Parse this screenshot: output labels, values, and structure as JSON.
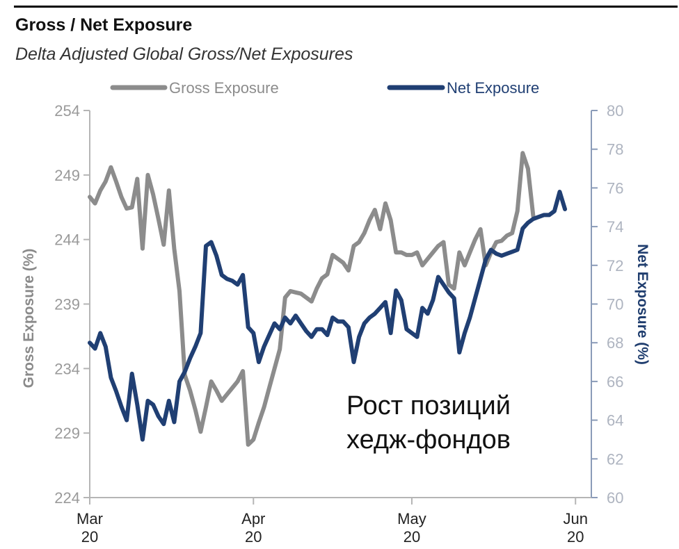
{
  "chart_data": {
    "type": "line",
    "title": "Gross / Net Exposure",
    "subtitle": "Delta Adjusted Global Gross/Net Exposures",
    "y_left_label": "Gross Exposure (%)",
    "y_right_label": "Net Exposure (%)",
    "y_left_range": [
      224,
      254
    ],
    "y_right_range": [
      60,
      80
    ],
    "y_left_ticks": [
      "224",
      "229",
      "234",
      "239",
      "244",
      "249",
      "254"
    ],
    "y_right_ticks": [
      "60",
      "62",
      "64",
      "66",
      "68",
      "70",
      "72",
      "74",
      "76",
      "78",
      "80"
    ],
    "x_ticks": [
      {
        "month": "Mar",
        "year": "20",
        "day": 1
      },
      {
        "month": "Apr",
        "year": "20",
        "day": 32
      },
      {
        "month": "May",
        "year": "20",
        "day": 62
      },
      {
        "month": "Jun",
        "year": "20",
        "day": 93
      }
    ],
    "x_range": [
      1,
      96
    ],
    "legend_position": "top",
    "annotation": [
      "Рост позиций",
      "хедж-фондов"
    ],
    "series": [
      {
        "name": "Gross Exposure",
        "axis": "left",
        "color": "#8c8c8c",
        "points": [
          [
            1,
            247.3
          ],
          [
            2,
            246.8
          ],
          [
            3,
            247.8
          ],
          [
            4,
            248.5
          ],
          [
            5,
            249.6
          ],
          [
            6,
            248.5
          ],
          [
            7,
            247.3
          ],
          [
            8,
            246.4
          ],
          [
            9,
            246.5
          ],
          [
            10,
            248.7
          ],
          [
            11,
            243.3
          ],
          [
            12,
            249.0
          ],
          [
            13,
            247.5
          ],
          [
            14,
            245.6
          ],
          [
            15,
            243.6
          ],
          [
            16,
            247.8
          ],
          [
            17,
            243.3
          ],
          [
            18,
            240.0
          ],
          [
            19,
            233.5
          ],
          [
            20,
            232.3
          ],
          [
            21,
            230.8
          ],
          [
            22,
            229.1
          ],
          [
            23,
            231.0
          ],
          [
            24,
            233.0
          ],
          [
            25,
            232.3
          ],
          [
            26,
            231.5
          ],
          [
            27,
            232.0
          ],
          [
            28,
            232.5
          ],
          [
            29,
            233.0
          ],
          [
            30,
            233.8
          ],
          [
            31,
            228.1
          ],
          [
            32,
            228.5
          ],
          [
            33,
            229.8
          ],
          [
            34,
            231.0
          ],
          [
            35,
            232.5
          ],
          [
            36,
            234.0
          ],
          [
            37,
            235.5
          ],
          [
            38,
            239.5
          ],
          [
            39,
            240.0
          ],
          [
            40,
            239.9
          ],
          [
            41,
            239.8
          ],
          [
            42,
            239.5
          ],
          [
            43,
            239.2
          ],
          [
            44,
            240.2
          ],
          [
            45,
            241.0
          ],
          [
            46,
            241.3
          ],
          [
            47,
            242.8
          ],
          [
            48,
            242.5
          ],
          [
            49,
            242.2
          ],
          [
            50,
            241.6
          ],
          [
            51,
            243.5
          ],
          [
            52,
            243.8
          ],
          [
            53,
            244.5
          ],
          [
            54,
            245.5
          ],
          [
            55,
            246.3
          ],
          [
            56,
            244.8
          ],
          [
            57,
            246.8
          ],
          [
            58,
            245.5
          ],
          [
            59,
            243.0
          ],
          [
            60,
            243.0
          ],
          [
            61,
            242.8
          ],
          [
            62,
            242.8
          ],
          [
            63,
            243.0
          ],
          [
            64,
            242.0
          ],
          [
            65,
            242.5
          ],
          [
            66,
            243.0
          ],
          [
            67,
            243.5
          ],
          [
            68,
            243.8
          ],
          [
            69,
            240.5
          ],
          [
            70,
            240.2
          ],
          [
            71,
            243.0
          ],
          [
            72,
            242.0
          ],
          [
            73,
            243.0
          ],
          [
            74,
            244.0
          ],
          [
            75,
            244.8
          ],
          [
            76,
            242.0
          ],
          [
            77,
            243.0
          ],
          [
            78,
            243.8
          ],
          [
            79,
            243.9
          ],
          [
            80,
            244.3
          ],
          [
            81,
            244.5
          ],
          [
            82,
            246.2
          ],
          [
            83,
            250.7
          ],
          [
            84,
            249.5
          ],
          [
            85,
            245.8
          ]
        ]
      },
      {
        "name": "Net Exposure",
        "axis": "right",
        "color": "#203f73",
        "points": [
          [
            1,
            68.0
          ],
          [
            2,
            67.7
          ],
          [
            3,
            68.5
          ],
          [
            4,
            67.8
          ],
          [
            5,
            66.2
          ],
          [
            6,
            65.5
          ],
          [
            7,
            64.7
          ],
          [
            8,
            64.0
          ],
          [
            9,
            66.4
          ],
          [
            10,
            64.8
          ],
          [
            11,
            63.0
          ],
          [
            12,
            65.0
          ],
          [
            13,
            64.8
          ],
          [
            14,
            64.2
          ],
          [
            15,
            63.8
          ],
          [
            16,
            65.0
          ],
          [
            17,
            63.9
          ],
          [
            18,
            66.0
          ],
          [
            19,
            66.5
          ],
          [
            20,
            67.2
          ],
          [
            21,
            67.8
          ],
          [
            22,
            68.5
          ],
          [
            23,
            73.0
          ],
          [
            24,
            73.2
          ],
          [
            25,
            72.5
          ],
          [
            26,
            71.5
          ],
          [
            27,
            71.3
          ],
          [
            28,
            71.2
          ],
          [
            29,
            71.0
          ],
          [
            30,
            71.5
          ],
          [
            31,
            68.8
          ],
          [
            32,
            68.5
          ],
          [
            33,
            67.0
          ],
          [
            34,
            67.8
          ],
          [
            35,
            68.4
          ],
          [
            36,
            69.0
          ],
          [
            37,
            68.7
          ],
          [
            38,
            69.3
          ],
          [
            39,
            69.0
          ],
          [
            40,
            69.4
          ],
          [
            41,
            69.0
          ],
          [
            42,
            68.6
          ],
          [
            43,
            68.3
          ],
          [
            44,
            68.7
          ],
          [
            45,
            68.7
          ],
          [
            46,
            68.4
          ],
          [
            47,
            69.3
          ],
          [
            48,
            69.1
          ],
          [
            49,
            69.1
          ],
          [
            50,
            68.8
          ],
          [
            51,
            67.0
          ],
          [
            52,
            68.3
          ],
          [
            53,
            69.0
          ],
          [
            54,
            69.3
          ],
          [
            55,
            69.5
          ],
          [
            56,
            69.8
          ],
          [
            57,
            70.1
          ],
          [
            58,
            68.5
          ],
          [
            59,
            70.7
          ],
          [
            60,
            70.2
          ],
          [
            61,
            68.7
          ],
          [
            62,
            68.5
          ],
          [
            63,
            68.3
          ],
          [
            64,
            69.8
          ],
          [
            65,
            69.5
          ],
          [
            66,
            70.2
          ],
          [
            67,
            71.4
          ],
          [
            68,
            71.0
          ],
          [
            69,
            70.6
          ],
          [
            70,
            70.3
          ],
          [
            71,
            67.5
          ],
          [
            72,
            68.5
          ],
          [
            73,
            69.3
          ],
          [
            74,
            70.3
          ],
          [
            75,
            71.3
          ],
          [
            76,
            72.3
          ],
          [
            77,
            72.8
          ],
          [
            78,
            72.6
          ],
          [
            79,
            72.5
          ],
          [
            80,
            72.6
          ],
          [
            81,
            72.7
          ],
          [
            82,
            72.8
          ],
          [
            83,
            73.9
          ],
          [
            84,
            74.2
          ],
          [
            85,
            74.4
          ],
          [
            86,
            74.5
          ],
          [
            87,
            74.6
          ],
          [
            88,
            74.6
          ],
          [
            89,
            74.8
          ],
          [
            90,
            75.8
          ],
          [
            91,
            74.9
          ]
        ]
      }
    ]
  }
}
